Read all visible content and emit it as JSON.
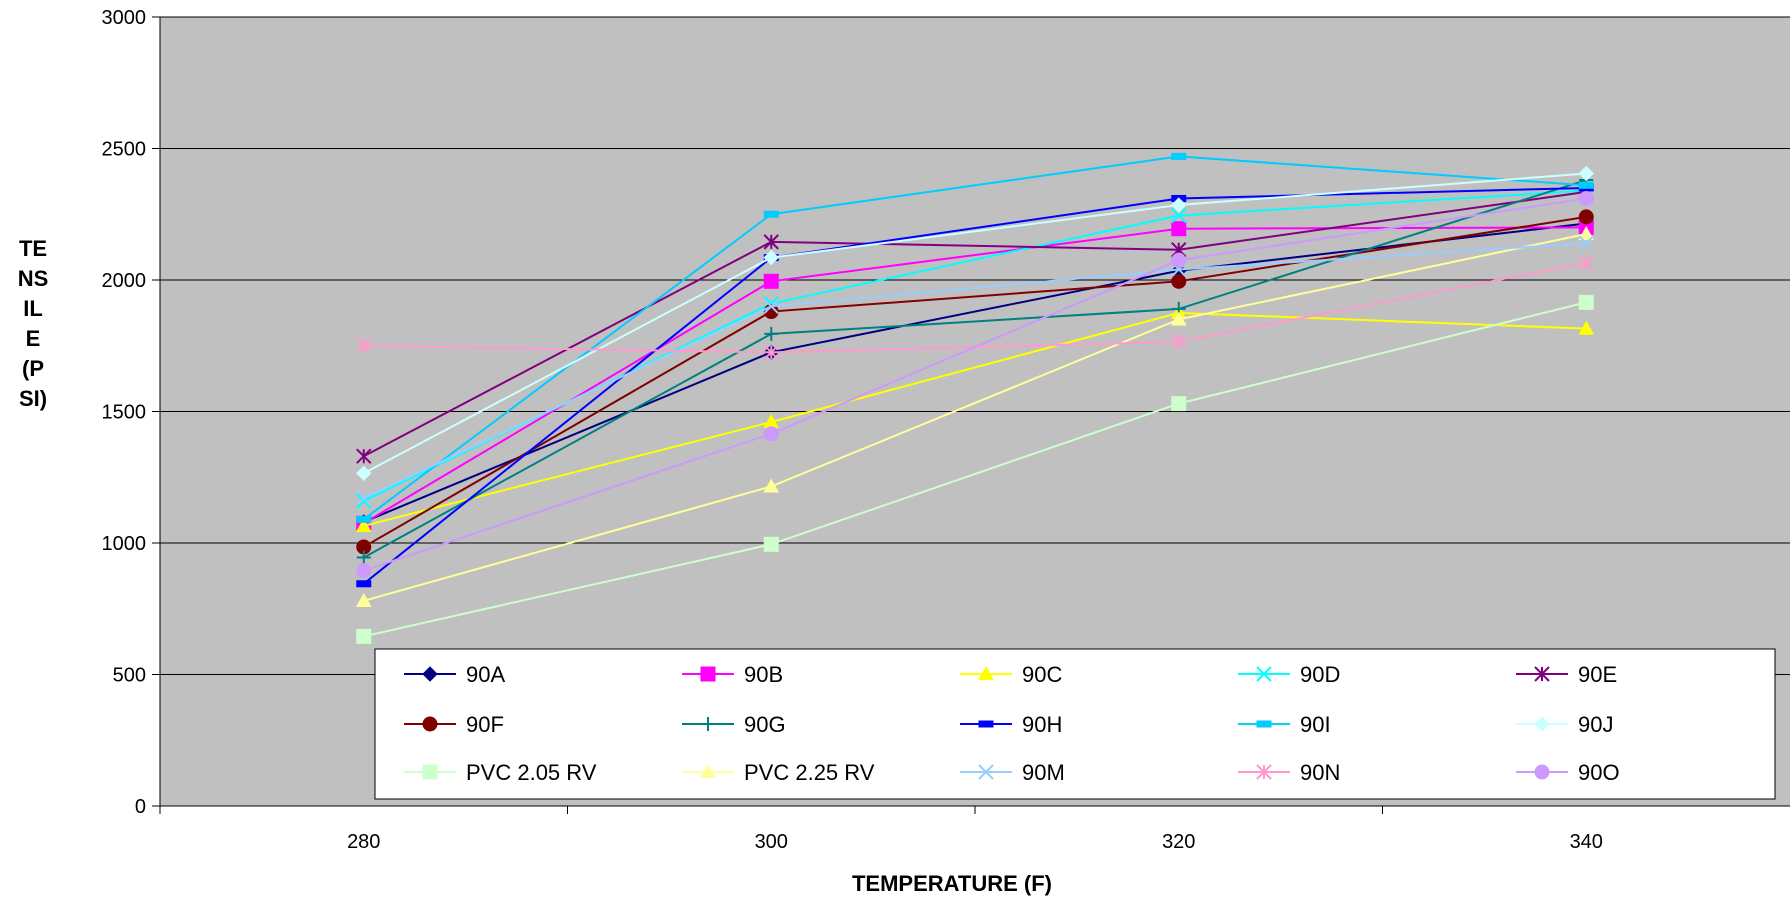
{
  "chart_data": {
    "type": "line",
    "title": "",
    "xlabel": "TEMPERATURE (F)",
    "ylabel_lines": [
      "TE",
      "NS",
      "IL",
      "E",
      "(P",
      "SI)"
    ],
    "x": [
      280,
      300,
      320,
      340
    ],
    "x_ticks": [
      "280",
      "300",
      "320",
      "340"
    ],
    "xlim": [
      270,
      350
    ],
    "ylim": [
      0,
      3000
    ],
    "y_ticks": [
      "0",
      "500",
      "1000",
      "1500",
      "2000",
      "2500",
      "3000"
    ],
    "grid": "horizontal",
    "plot_background": "#c0c0c0",
    "legend_position": "bottom-inside",
    "series": [
      {
        "name": "90A",
        "values": [
          1080,
          1725,
          2035,
          2215
        ],
        "color": "#000080",
        "marker": "diamond"
      },
      {
        "name": "90B",
        "values": [
          1075,
          1995,
          2195,
          2200
        ],
        "color": "#ff00ff",
        "marker": "square"
      },
      {
        "name": "90C",
        "values": [
          1065,
          1460,
          1875,
          1815
        ],
        "color": "#ffff00",
        "marker": "triangle"
      },
      {
        "name": "90D",
        "values": [
          1160,
          1910,
          2245,
          2340
        ],
        "color": "#00ffff",
        "marker": "x"
      },
      {
        "name": "90E",
        "values": [
          1330,
          2145,
          2115,
          2335
        ],
        "color": "#800080",
        "marker": "star"
      },
      {
        "name": "90F",
        "values": [
          985,
          1880,
          1995,
          2240
        ],
        "color": "#800000",
        "marker": "circle"
      },
      {
        "name": "90G",
        "values": [
          945,
          1795,
          1890,
          2380
        ],
        "color": "#008080",
        "marker": "plus"
      },
      {
        "name": "90H",
        "values": [
          845,
          2085,
          2310,
          2350
        ],
        "color": "#0000ff",
        "marker": "dash"
      },
      {
        "name": "90I",
        "values": [
          1090,
          2250,
          2470,
          2360
        ],
        "color": "#00ccff",
        "marker": "dash"
      },
      {
        "name": "90J",
        "values": [
          1265,
          2085,
          2285,
          2405
        ],
        "color": "#ccffff",
        "marker": "diamond"
      },
      {
        "name": "PVC 2.05 RV",
        "values": [
          645,
          995,
          1530,
          1915
        ],
        "color": "#ccffcc",
        "marker": "square"
      },
      {
        "name": "PVC 2.25 RV",
        "values": [
          780,
          1215,
          1850,
          2175
        ],
        "color": "#ffff99",
        "marker": "triangle"
      },
      {
        "name": "90M",
        "values": [
          1170,
          1900,
          2040,
          2140
        ],
        "color": "#99ccff",
        "marker": "x"
      },
      {
        "name": "90N",
        "values": [
          1750,
          1725,
          1765,
          2065
        ],
        "color": "#ff99cc",
        "marker": "star"
      },
      {
        "name": "90O",
        "values": [
          895,
          1415,
          2075,
          2310
        ],
        "color": "#cc99ff",
        "marker": "circle"
      }
    ]
  }
}
